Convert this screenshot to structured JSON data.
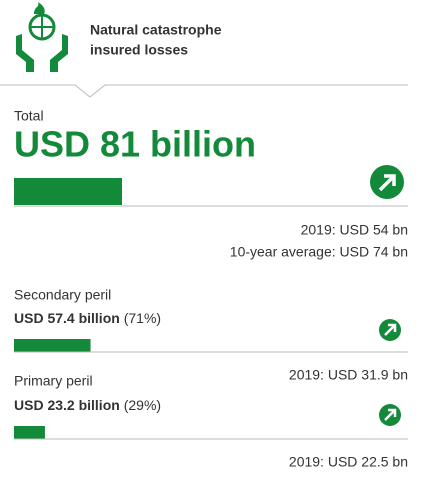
{
  "header": {
    "title_lines": [
      "Natural catastrophe",
      "insured losses"
    ]
  },
  "total": {
    "label": "Total",
    "value": 81,
    "value_label": "USD 81 billion",
    "comparisons": [
      "2019: USD 54 bn",
      "10-year average: USD 74 bn"
    ]
  },
  "items": [
    {
      "label": "Secondary peril",
      "value": 57.4,
      "value_label": "USD 57.4 billion",
      "share": "(71%)",
      "comparison": "2019: USD 31.9 bn"
    },
    {
      "label": "Primary peril",
      "value": 23.2,
      "value_label": "USD 23.2 billion",
      "share": "(29%)",
      "comparison": "2019: USD 22.5 bn"
    }
  ]
}
